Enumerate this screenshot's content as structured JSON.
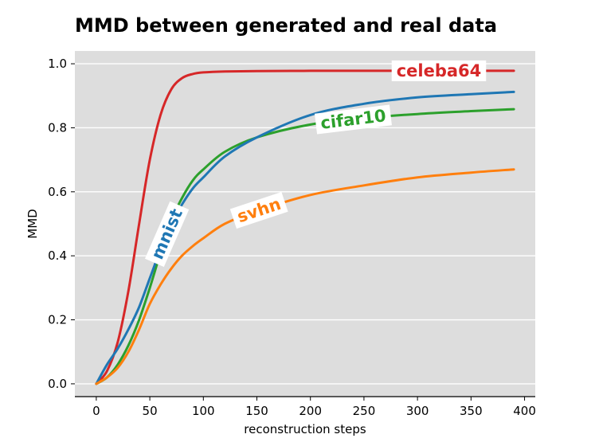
{
  "chart_data": {
    "type": "line",
    "title": "MMD between generated and real data",
    "xlabel": "reconstruction steps",
    "ylabel": "MMD",
    "xlim": [
      -20,
      410
    ],
    "ylim": [
      -0.04,
      1.04
    ],
    "xticks": [
      0,
      50,
      100,
      150,
      200,
      250,
      300,
      350,
      400
    ],
    "yticks": [
      0.0,
      0.2,
      0.4,
      0.6,
      0.8,
      1.0
    ],
    "xtick_labels": [
      "0",
      "50",
      "100",
      "150",
      "200",
      "250",
      "300",
      "350",
      "400"
    ],
    "ytick_labels": [
      "0.0",
      "0.2",
      "0.4",
      "0.6",
      "0.8",
      "1.0"
    ],
    "grid": true,
    "background": "#dddddd",
    "series": [
      {
        "name": "celeba64",
        "color": "#d62728",
        "label_at_x": 320,
        "x": [
          0,
          10,
          20,
          30,
          40,
          50,
          60,
          70,
          80,
          90,
          100,
          120,
          150,
          200,
          250,
          300,
          350,
          390
        ],
        "values": [
          0.0,
          0.04,
          0.13,
          0.29,
          0.5,
          0.7,
          0.84,
          0.92,
          0.955,
          0.968,
          0.973,
          0.976,
          0.977,
          0.978,
          0.978,
          0.978,
          0.978,
          0.978
        ]
      },
      {
        "name": "cifar10",
        "color": "#2ca02c",
        "label_at_x": 240,
        "x": [
          0,
          10,
          20,
          30,
          40,
          50,
          60,
          70,
          80,
          90,
          100,
          120,
          150,
          200,
          250,
          300,
          350,
          390
        ],
        "values": [
          0.0,
          0.02,
          0.06,
          0.12,
          0.2,
          0.3,
          0.41,
          0.51,
          0.58,
          0.635,
          0.67,
          0.725,
          0.77,
          0.81,
          0.83,
          0.843,
          0.852,
          0.858
        ]
      },
      {
        "name": "mnist",
        "color": "#1f77b4",
        "label_at_x": 66,
        "x": [
          0,
          10,
          20,
          30,
          40,
          50,
          60,
          70,
          80,
          90,
          100,
          120,
          150,
          200,
          250,
          300,
          350,
          390
        ],
        "values": [
          0.0,
          0.06,
          0.11,
          0.17,
          0.24,
          0.33,
          0.42,
          0.5,
          0.56,
          0.61,
          0.645,
          0.71,
          0.77,
          0.84,
          0.875,
          0.895,
          0.905,
          0.912
        ]
      },
      {
        "name": "svhn",
        "color": "#ff7f0e",
        "label_at_x": 152,
        "x": [
          0,
          10,
          20,
          30,
          40,
          50,
          60,
          70,
          80,
          90,
          100,
          120,
          150,
          200,
          250,
          300,
          350,
          390
        ],
        "values": [
          0.0,
          0.02,
          0.05,
          0.1,
          0.17,
          0.25,
          0.31,
          0.36,
          0.4,
          0.43,
          0.455,
          0.5,
          0.54,
          0.59,
          0.62,
          0.645,
          0.66,
          0.67
        ]
      }
    ]
  }
}
